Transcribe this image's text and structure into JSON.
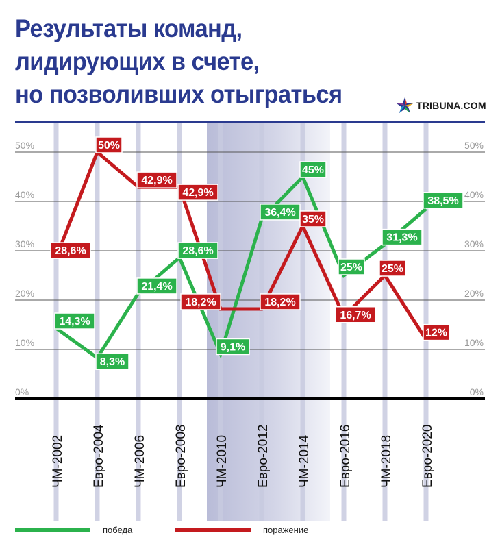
{
  "title_lines": [
    "Результаты команд,",
    "лидирующих в счете,",
    "но позволивших отыграться"
  ],
  "brand": "TRIBUNA.COM",
  "colors": {
    "title": "#2a3a8f",
    "win": "#2bb24c",
    "loss": "#c41a1e",
    "grid": "#c8cbe0",
    "axis": "#000000"
  },
  "legend": {
    "win_label": "победа",
    "loss_label": "поражение"
  },
  "chart_data": {
    "type": "line",
    "categories": [
      "ЧМ-2002",
      "Евро-2004",
      "ЧМ-2006",
      "Евро-2008",
      "ЧМ-2010",
      "Евро-2012",
      "ЧМ-2014",
      "Евро-2016",
      "ЧМ-2018",
      "Евро-2020"
    ],
    "y_ticks": [
      "0%",
      "10%",
      "20%",
      "30%",
      "40%",
      "50%"
    ],
    "ylim": [
      0,
      50
    ],
    "grid": true,
    "highlighted_categories": [
      "ЧМ-2010",
      "Евро-2012",
      "ЧМ-2014"
    ],
    "legend_position": "bottom",
    "series": [
      {
        "name": "победа",
        "color": "#2bb24c",
        "values": [
          14.3,
          8.3,
          21.4,
          28.6,
          9.1,
          36.4,
          45,
          25,
          31.3,
          38.5
        ],
        "labels": [
          "14,3%",
          "8,3%",
          "21,4%",
          "28,6%",
          "9,1%",
          "36,4%",
          "45%",
          "25%",
          "31,3%",
          "38,5%"
        ]
      },
      {
        "name": "поражение",
        "color": "#c41a1e",
        "values": [
          28.6,
          50,
          42.9,
          42.9,
          18.2,
          18.2,
          35,
          16.7,
          25,
          12
        ],
        "labels": [
          "28,6%",
          "50%",
          "42,9%",
          "42,9%",
          "18,2%",
          "18,2%",
          "35%",
          "16,7%",
          "25%",
          "12%"
        ]
      }
    ]
  }
}
